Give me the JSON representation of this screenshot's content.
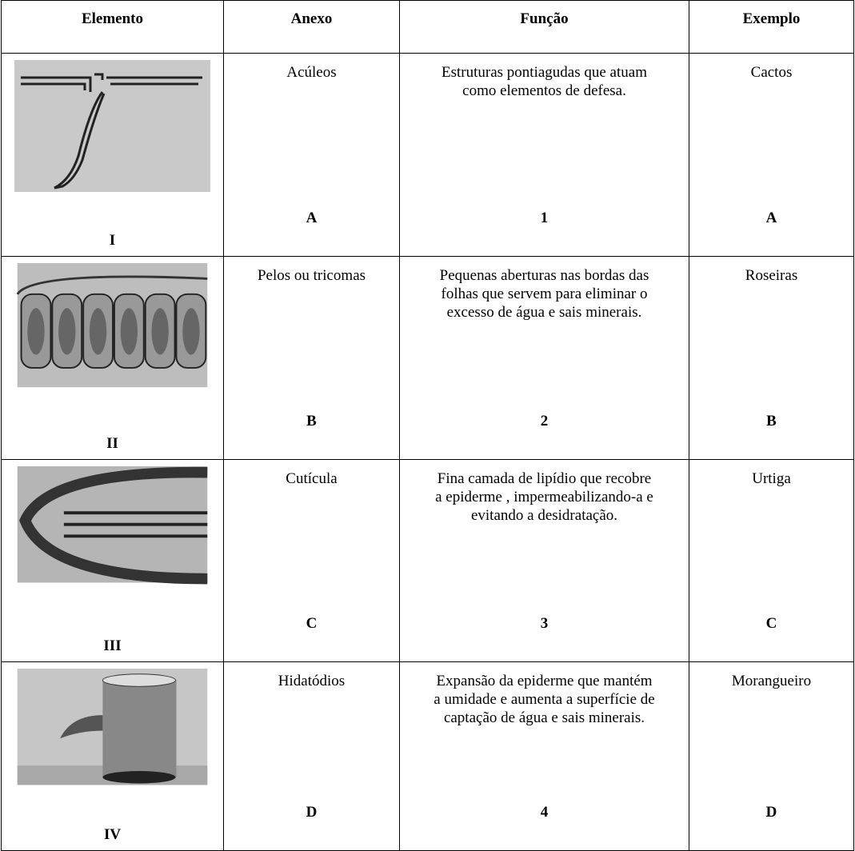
{
  "table": {
    "header": [
      "Elemento",
      "Anexo",
      "Função",
      "Exemplo"
    ],
    "rows": [
      {
        "element_label": "I",
        "anexo": "Acúleos",
        "anexo_label": "A",
        "funcao": "Estruturas pontiagudas que atuam como elementos de defesa.",
        "funcao_label": "1",
        "exemplo": "Cactos",
        "exemplo_label": "A"
      },
      {
        "element_label": "II",
        "anexo": "Pelos ou tricomas",
        "anexo_label": "B",
        "funcao": "Pequenas aberturas nas bordas das folhas que servem para eliminar o excesso de água e sais minerais.",
        "funcao_label": "2",
        "exemplo": "Roseiras",
        "exemplo_label": "B"
      },
      {
        "element_label": "III",
        "anexo": "Cutícula",
        "anexo_label": "C",
        "funcao": "Fina camada de lipídio que recobre a epiderme , impermeabilizando-a e evitando a desidratação.",
        "funcao_label": "3",
        "exemplo": "Urtiga",
        "exemplo_label": "C"
      },
      {
        "element_label": "IV",
        "anexo": "Hidatódios",
        "anexo_label": "D",
        "funcao": "Expansão da epiderme que mantém a umidade e aumenta a superfície de captação de água e sais minerais.",
        "funcao_label": "4",
        "exemplo": "Morangueiro",
        "exemplo_label": "D"
      }
    ]
  }
}
